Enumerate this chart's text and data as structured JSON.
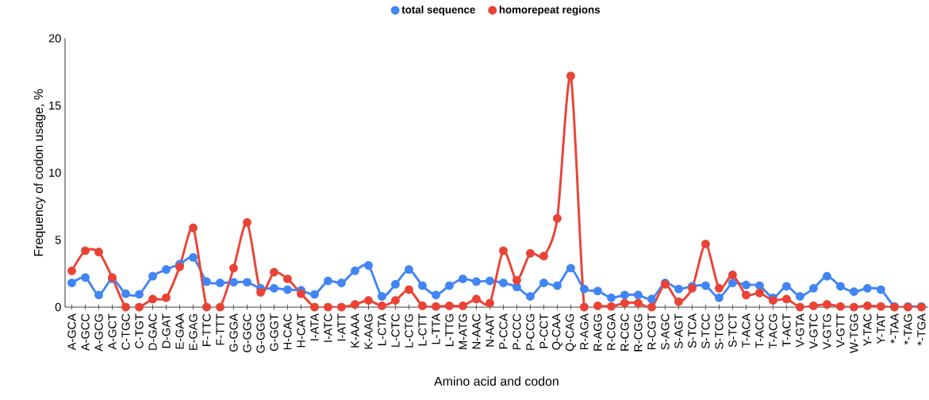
{
  "chart_data": {
    "type": "line",
    "xlabel": "Amino acid and codon",
    "ylabel": "Frequency of codon usage, %",
    "categories": [
      "A-GCA",
      "A-GCC",
      "A-GCG",
      "A-GCT",
      "C-TGC",
      "C-TGT",
      "D-GAC",
      "D-GAT",
      "E-GAA",
      "E-GAG",
      "F-TTC",
      "F-TTT",
      "G-GGA",
      "G-GGC",
      "G-GGG",
      "G-GGT",
      "H-CAC",
      "H-CAT",
      "I-ATA",
      "I-ATC",
      "I-ATT",
      "K-AAA",
      "K-AAG",
      "L-CTA",
      "L-CTC",
      "L-CTG",
      "L-CTT",
      "L-TTA",
      "L-TTG",
      "M-ATG",
      "N-AAC",
      "N-AAT",
      "P-CCA",
      "P-CCC",
      "P-CCG",
      "P-CCT",
      "Q-CAA",
      "Q-CAG",
      "R-AGA",
      "R-AGG",
      "R-CGA",
      "R-CGC",
      "R-CGG",
      "R-CGT",
      "S-AGC",
      "S-AGT",
      "S-TCA",
      "S-TCC",
      "S-TCG",
      "S-TCT",
      "T-ACA",
      "T-ACC",
      "T-ACG",
      "T-ACT",
      "V-GTA",
      "V-GTC",
      "V-GTG",
      "V-GTT",
      "W-TGG",
      "Y-TAC",
      "Y-TAT",
      "*-TAA",
      "*-TAG",
      "*-TGA"
    ],
    "series": [
      {
        "name": "total sequence",
        "color": "#4285f4",
        "values": [
          1.8,
          2.2,
          0.9,
          2.1,
          1.0,
          0.95,
          2.3,
          2.8,
          3.2,
          3.7,
          1.9,
          1.8,
          1.85,
          1.85,
          1.4,
          1.4,
          1.3,
          1.25,
          0.95,
          1.95,
          1.8,
          2.7,
          3.1,
          0.8,
          1.7,
          2.8,
          1.6,
          0.9,
          1.6,
          2.1,
          1.9,
          1.95,
          1.8,
          1.5,
          0.8,
          1.8,
          1.6,
          2.9,
          1.35,
          1.2,
          0.7,
          0.9,
          0.9,
          0.6,
          1.8,
          1.35,
          1.55,
          1.6,
          0.7,
          1.8,
          1.65,
          1.6,
          0.7,
          1.55,
          0.8,
          1.4,
          2.3,
          1.55,
          1.15,
          1.4,
          1.3,
          0.05,
          0.05,
          0.05
        ]
      },
      {
        "name": "homorepeat regions",
        "color": "#ea4335",
        "values": [
          2.7,
          4.2,
          4.1,
          2.2,
          0,
          0,
          0.6,
          0.7,
          3.0,
          5.9,
          0,
          0,
          2.9,
          6.3,
          1.1,
          2.6,
          2.1,
          1.0,
          0,
          0,
          0,
          0.2,
          0.5,
          0.1,
          0.5,
          1.3,
          0.1,
          0.05,
          0.1,
          0.1,
          0.6,
          0.3,
          4.2,
          2.0,
          4.0,
          3.8,
          6.6,
          17.2,
          0,
          0.1,
          0.05,
          0.3,
          0.3,
          0,
          1.7,
          0.4,
          1.4,
          4.7,
          1.4,
          2.4,
          0.9,
          1.05,
          0.5,
          0.6,
          0,
          0.1,
          0.2,
          0.05,
          0,
          0.1,
          0.05,
          0,
          0,
          0
        ]
      }
    ],
    "ylim": [
      0,
      20
    ],
    "yticks": [
      0,
      5,
      10,
      15,
      20
    ],
    "legend": "top",
    "marker": "circle",
    "line_style": "solid"
  }
}
